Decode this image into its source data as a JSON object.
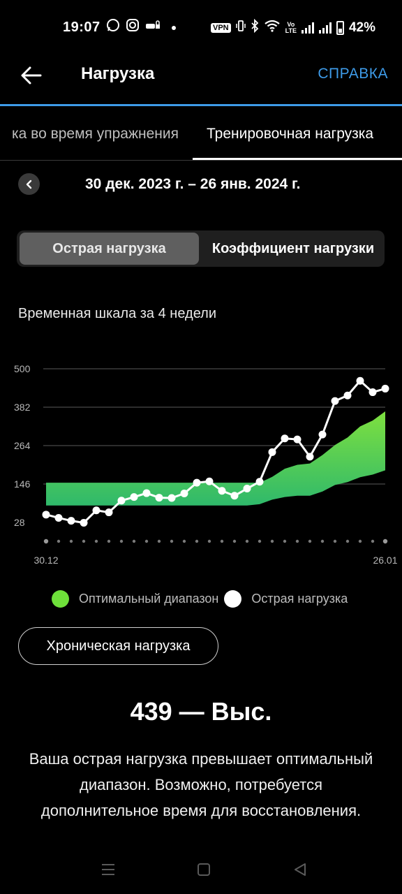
{
  "status_bar": {
    "time": "19:07",
    "vpn": "VPN",
    "battery": "42%",
    "icons": [
      "whatsapp-icon",
      "instagram-icon",
      "car-lock-icon",
      "vibrate-icon",
      "bluetooth-icon",
      "wifi-icon",
      "volte-icon",
      "signal-icon",
      "battery-icon"
    ]
  },
  "app_bar": {
    "title": "Нагрузка",
    "help": "СПРАВКА"
  },
  "tabs": [
    {
      "label": "Нагрузка во время упражнения",
      "visible_label": "ка во время упражнения"
    },
    {
      "label": "Тренировочная нагрузка",
      "active": true
    }
  ],
  "date_range": "30 дек. 2023 г. – 26 янв. 2024 г.",
  "segment": {
    "active": "Острая нагрузка",
    "inactive": "Коэффициент нагрузки"
  },
  "timeline_label": "Временная шкала за 4 недели",
  "chart_data": {
    "type": "line",
    "x_start_label": "30.12",
    "x_end_label": "26.01",
    "y_ticks": [
      28,
      146,
      264,
      382,
      500
    ],
    "ylim": [
      28,
      500
    ],
    "series": [
      {
        "name": "Острая нагрузка",
        "values": [
          52,
          42,
          33,
          27,
          65,
          59,
          95,
          106,
          118,
          104,
          103,
          117,
          150,
          154,
          125,
          110,
          132,
          153,
          244,
          286,
          283,
          230,
          298,
          401,
          418,
          463,
          428,
          439
        ]
      }
    ],
    "band": {
      "name": "Оптимальный диапазон",
      "lower": [
        80,
        80,
        80,
        80,
        80,
        80,
        80,
        80,
        80,
        80,
        80,
        80,
        80,
        80,
        80,
        80,
        80,
        84,
        98,
        106,
        110,
        110,
        123,
        143,
        152,
        167,
        175,
        188
      ],
      "upper": [
        150,
        150,
        150,
        150,
        150,
        150,
        150,
        150,
        150,
        150,
        150,
        150,
        150,
        150,
        150,
        150,
        150,
        150,
        168,
        193,
        205,
        209,
        235,
        266,
        289,
        323,
        341,
        369
      ]
    },
    "colors": {
      "band_top": "#7ee03f",
      "band_bottom": "#2fb96b",
      "line": "#ffffff",
      "grid": "#3c3c3c"
    },
    "legend": [
      "Оптимальный диапазон",
      "Острая нагрузка"
    ]
  },
  "legend": {
    "optimal": "Оптимальный диапазон",
    "acute": "Острая нагрузка",
    "optimal_color": "#6ee03a",
    "acute_color": "#ffffff"
  },
  "chronic_button": "Хроническая нагрузка",
  "value_title": "439 — Выс.",
  "description": "Ваша острая нагрузка превышает оптимальный диапазон. Возможно, потребуется дополнительное время для восстановления."
}
